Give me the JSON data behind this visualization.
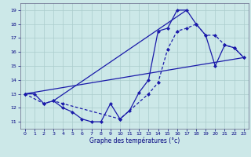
{
  "xlabel": "Graphe des températures (°c)",
  "background_color": "#cce8e8",
  "grid_color": "#aacccc",
  "line_color": "#1a1aaa",
  "xlim": [
    -0.5,
    23.5
  ],
  "ylim": [
    10.5,
    19.5
  ],
  "xticks": [
    0,
    1,
    2,
    3,
    4,
    5,
    6,
    7,
    8,
    9,
    10,
    11,
    12,
    13,
    14,
    15,
    16,
    17,
    18,
    19,
    20,
    21,
    22,
    23
  ],
  "yticks": [
    11,
    12,
    13,
    14,
    15,
    16,
    17,
    18,
    19
  ],
  "series1_x": [
    0,
    1,
    2,
    3,
    4,
    5,
    6,
    7,
    8,
    9,
    10,
    11,
    12,
    13,
    14,
    15,
    16,
    17,
    18,
    19,
    20,
    21,
    22,
    23
  ],
  "series1_y": [
    13.0,
    13.0,
    12.3,
    12.5,
    12.0,
    11.7,
    11.2,
    11.0,
    11.0,
    12.3,
    11.2,
    11.8,
    13.1,
    14.0,
    17.5,
    17.7,
    19.0,
    19.0,
    18.0,
    17.2,
    15.0,
    16.5,
    16.3,
    15.6
  ],
  "series2_x": [
    0,
    2,
    3,
    4,
    10,
    13,
    14,
    15,
    16,
    17,
    18,
    19,
    20,
    21,
    22,
    23
  ],
  "series2_y": [
    13.0,
    12.3,
    12.5,
    12.3,
    11.2,
    13.0,
    13.8,
    16.2,
    17.5,
    17.7,
    18.0,
    17.2,
    17.2,
    16.5,
    16.3,
    15.6
  ],
  "series3_x": [
    0,
    23
  ],
  "series3_y": [
    13.0,
    15.6
  ],
  "series4_x": [
    3,
    17
  ],
  "series4_y": [
    12.5,
    19.0
  ]
}
